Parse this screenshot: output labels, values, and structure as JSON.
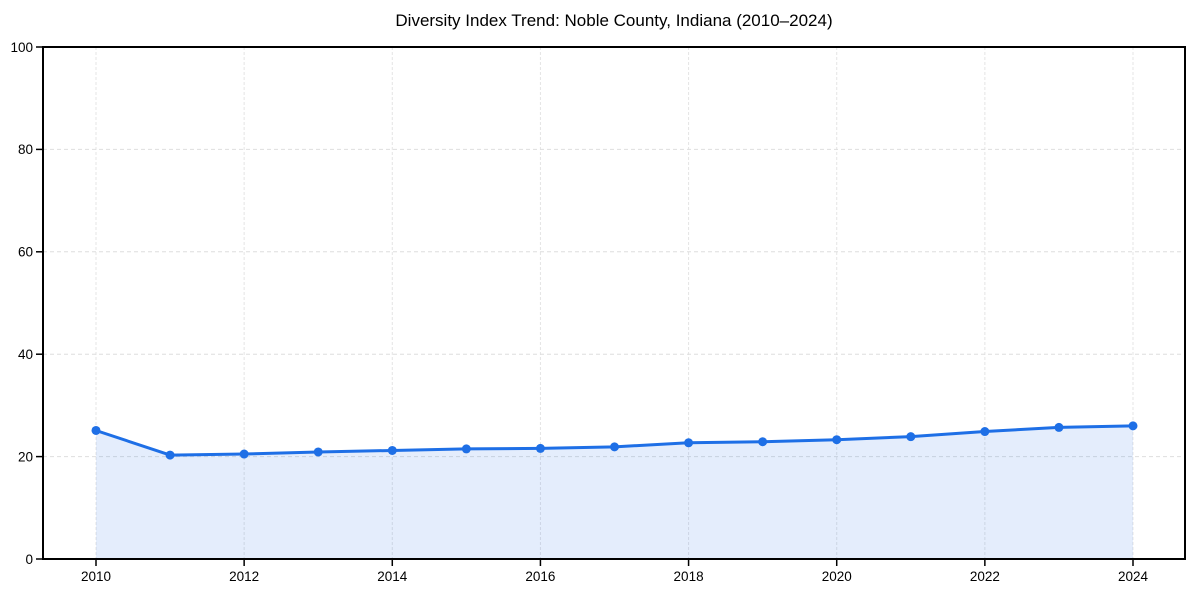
{
  "chart_data": {
    "type": "line",
    "title": "Diversity Index Trend: Noble County, Indiana (2010–2024)",
    "x": [
      2010,
      2011,
      2012,
      2013,
      2014,
      2015,
      2016,
      2017,
      2018,
      2019,
      2020,
      2021,
      2022,
      2023,
      2024
    ],
    "values": [
      25.1,
      20.3,
      20.5,
      20.9,
      21.2,
      21.5,
      21.6,
      21.9,
      22.7,
      22.9,
      23.3,
      23.9,
      24.9,
      25.7,
      26.0
    ],
    "xlabel": "",
    "ylabel": "",
    "xlim": [
      2009.3,
      2024.7
    ],
    "ylim": [
      0,
      100
    ],
    "xticks": [
      2010,
      2012,
      2014,
      2016,
      2018,
      2020,
      2022,
      2024
    ],
    "yticks": [
      0,
      20,
      40,
      60,
      80,
      100
    ],
    "grid": true,
    "legend": false,
    "area_fill": true,
    "marker": "circle",
    "colors": {
      "line": "#1e6fe6",
      "marker": "#1e6fe6",
      "area": "rgba(30, 111, 230, 0.12)",
      "grid_h": "#dedede",
      "grid_v": "#e4e4e4",
      "spine": "#000000",
      "text": "#000000",
      "background": "#ffffff"
    }
  }
}
